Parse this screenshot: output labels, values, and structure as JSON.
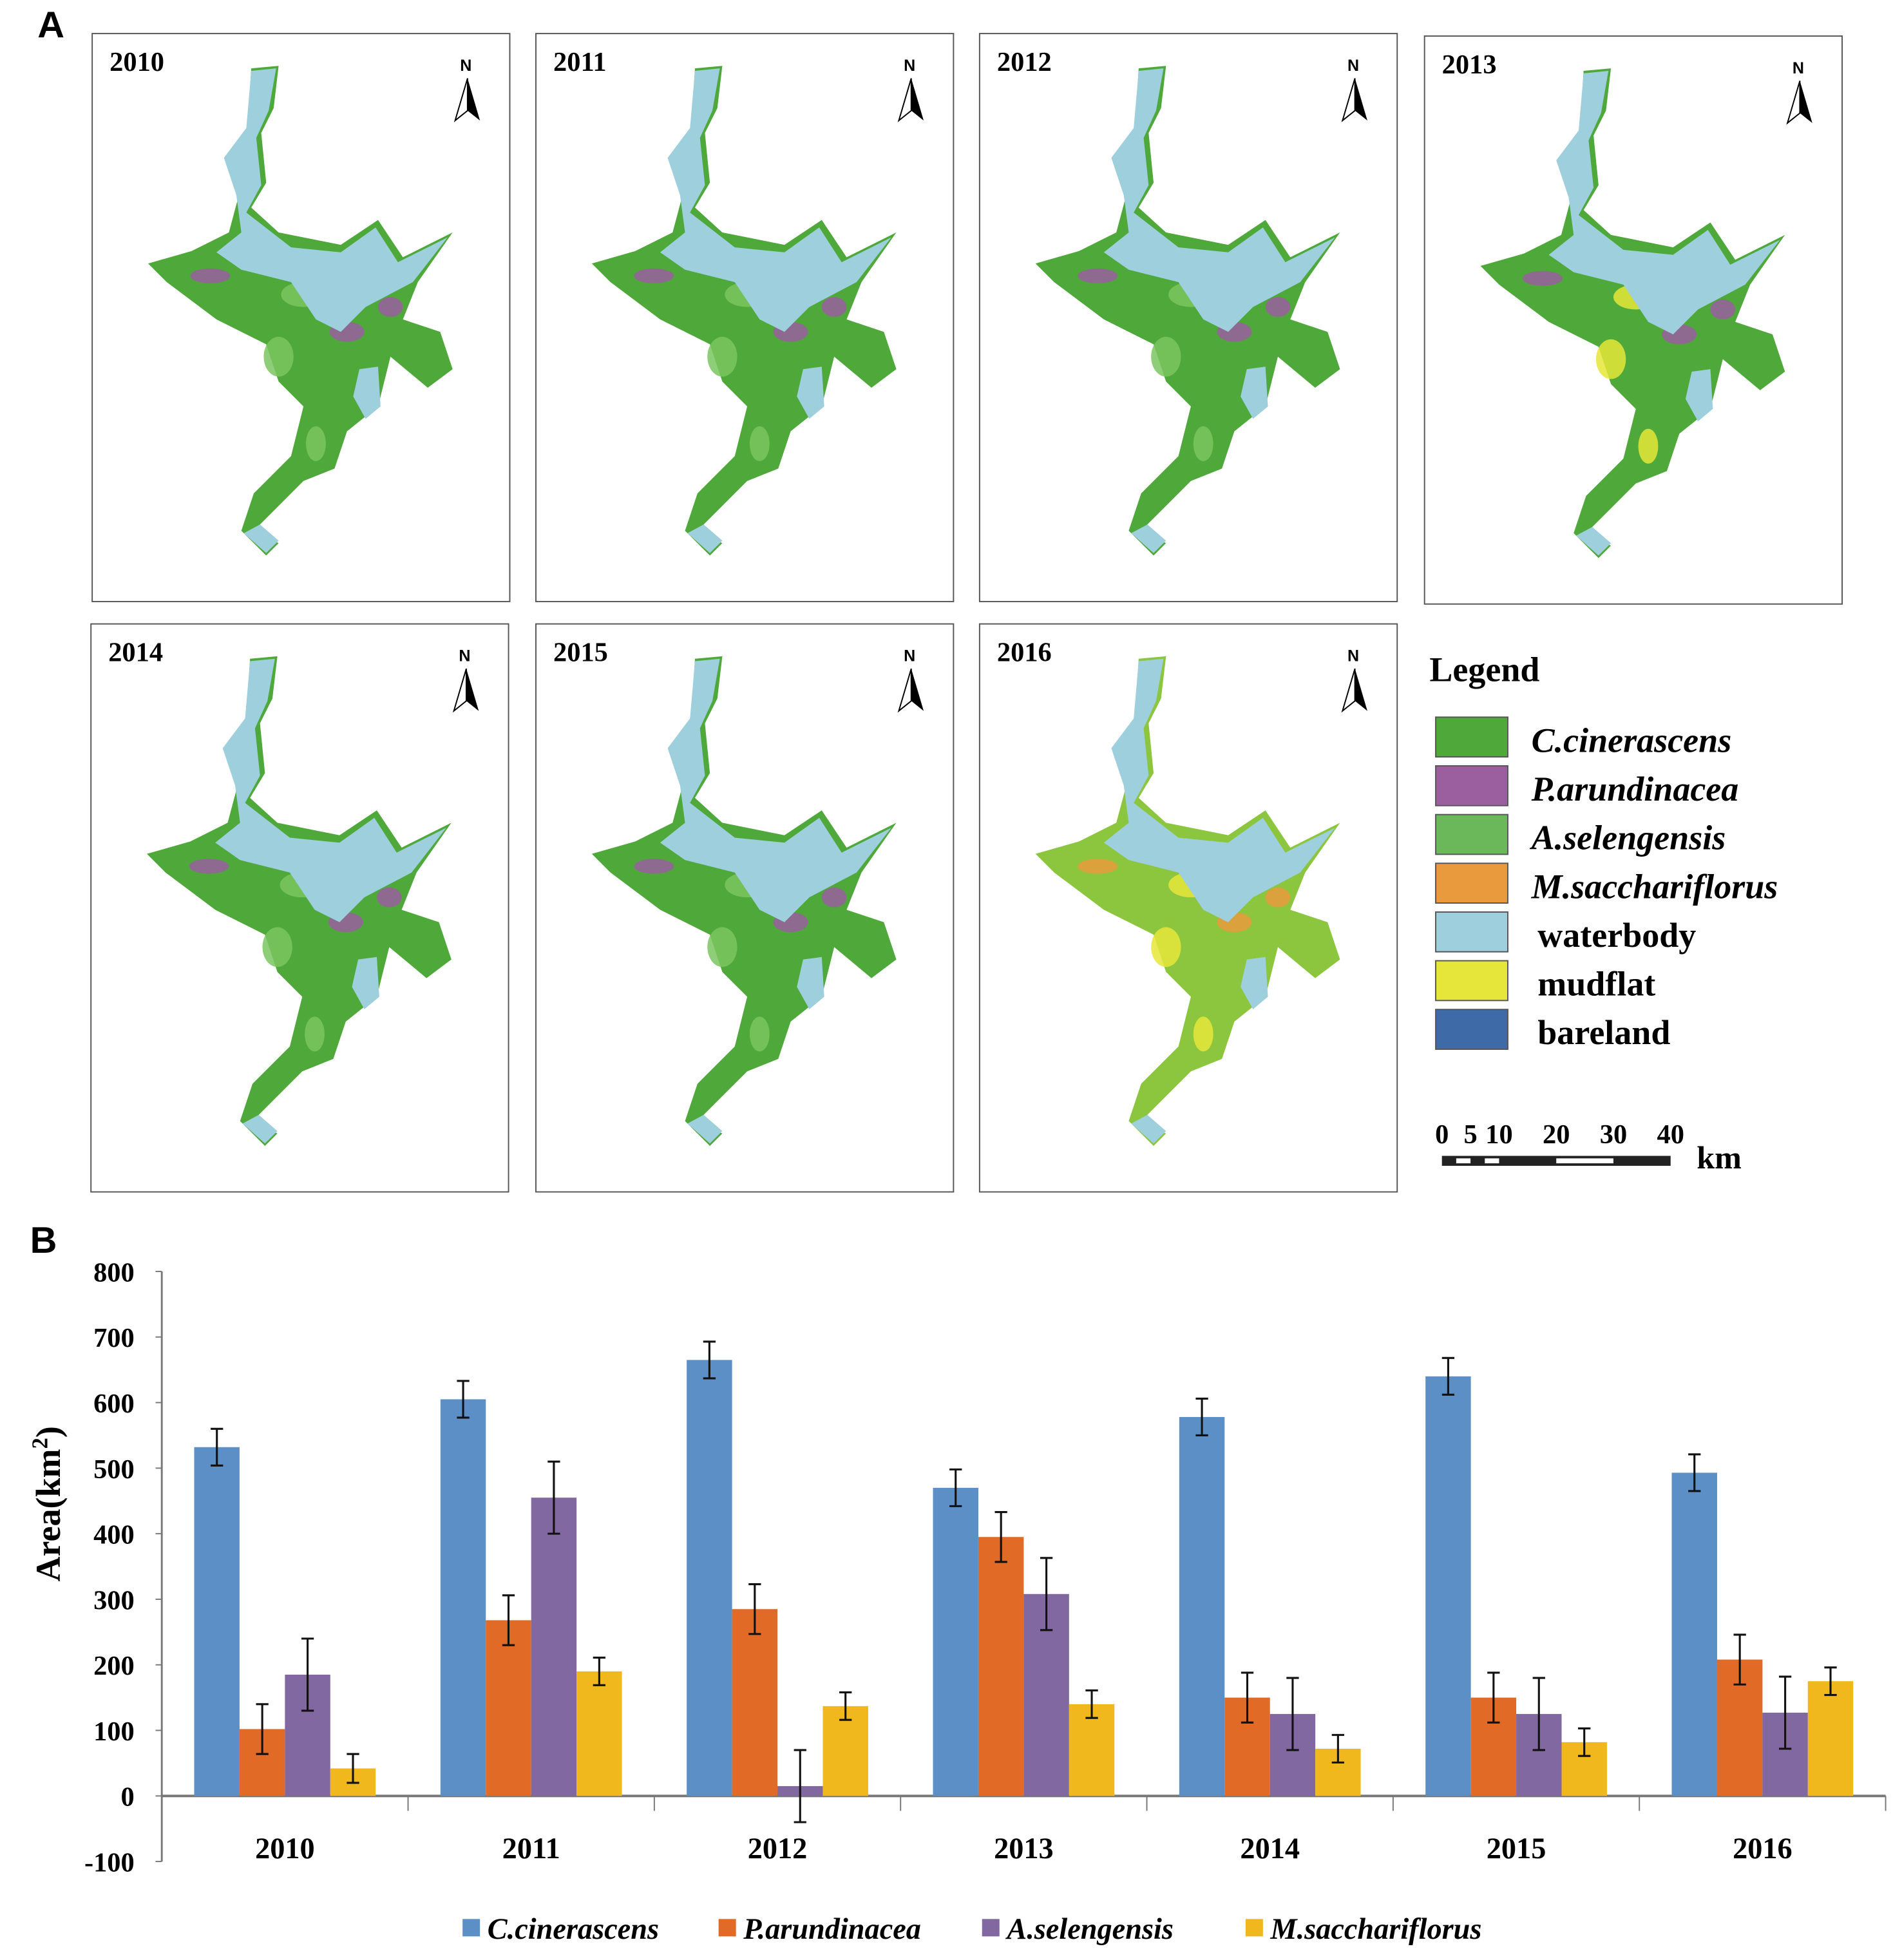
{
  "figure": {
    "panel_a_label": "A",
    "panel_b_label": "B"
  },
  "maps": [
    {
      "year": "2010",
      "north": "N",
      "tint": "#4ea83a",
      "accent": "#9b5fa0",
      "mud": "#e6e63a"
    },
    {
      "year": "2011",
      "north": "N",
      "tint": "#4ea83a",
      "accent": "#9b5fa0",
      "mud": "#e6e63a"
    },
    {
      "year": "2012",
      "north": "N",
      "tint": "#4ea83a",
      "accent": "#9b5fa0",
      "mud": "#e6e63a"
    },
    {
      "year": "2013",
      "north": "N",
      "tint": "#4ea83a",
      "accent": "#9b5fa0",
      "mud": "#e6e63a"
    },
    {
      "year": "2014",
      "north": "N",
      "tint": "#4ea83a",
      "accent": "#9b5fa0",
      "mud": "#e6e63a"
    },
    {
      "year": "2015",
      "north": "N",
      "tint": "#4ea83a",
      "accent": "#9b5fa0",
      "mud": "#e6e63a"
    },
    {
      "year": "2016",
      "north": "N",
      "tint": "#8cc63f",
      "accent": "#e89a3c",
      "mud": "#e6e63a"
    }
  ],
  "legend": {
    "title": "Legend",
    "items": [
      {
        "label": "C.cinerascens",
        "color": "#4ea83a",
        "italic": true
      },
      {
        "label": "P.arundinacea",
        "color": "#9b5fa0",
        "italic": true
      },
      {
        "label": "A.selengensis",
        "color": "#6ab85a",
        "italic": true
      },
      {
        "label": "M.sacchariflorus",
        "color": "#e89a3c",
        "italic": true
      },
      {
        "label": "waterbody",
        "color": "#9ecfdc",
        "italic": false
      },
      {
        "label": "mudflat",
        "color": "#e6e63a",
        "italic": false
      },
      {
        "label": "bareland",
        "color": "#3e6aa8",
        "italic": false
      }
    ],
    "scale_ticks": [
      "0",
      "5",
      "10",
      "20",
      "30",
      "40"
    ],
    "scale_unit": "km"
  },
  "chart_data": {
    "type": "bar",
    "title": "",
    "xlabel": "",
    "ylabel": "Area(km2)",
    "ylabel_main": "Area(km",
    "ylabel_sup": "2",
    "ylabel_end": ")",
    "ylim": [
      -100,
      800
    ],
    "yticks": [
      "800",
      "700",
      "600",
      "500",
      "400",
      "300",
      "200",
      "100",
      "0",
      "-100"
    ],
    "ytick_values": [
      800,
      700,
      600,
      500,
      400,
      300,
      200,
      100,
      0,
      -100
    ],
    "categories": [
      "2010",
      "2011",
      "2012",
      "2013",
      "2014",
      "2015",
      "2016"
    ],
    "grid": false,
    "legend_position": "bottom",
    "series": [
      {
        "name": "C.cinerascens",
        "color": "#5b8fc6",
        "values": [
          532,
          605,
          665,
          470,
          578,
          640,
          493
        ],
        "errors": [
          28,
          28,
          28,
          28,
          28,
          28,
          28
        ]
      },
      {
        "name": "P.arundinacea",
        "color": "#e06a26",
        "values": [
          102,
          268,
          285,
          395,
          150,
          150,
          208
        ],
        "errors": [
          38,
          38,
          38,
          38,
          38,
          38,
          38
        ]
      },
      {
        "name": "A.selengensis",
        "color": "#8268a0",
        "values": [
          185,
          455,
          15,
          308,
          125,
          125,
          127
        ],
        "errors": [
          55,
          55,
          55,
          55,
          55,
          55,
          55
        ]
      },
      {
        "name": "M.sacchariflorus",
        "color": "#f0b81c",
        "values": [
          42,
          190,
          137,
          140,
          72,
          82,
          175
        ],
        "errors": [
          22,
          21,
          21,
          21,
          21,
          21,
          21
        ]
      }
    ]
  }
}
